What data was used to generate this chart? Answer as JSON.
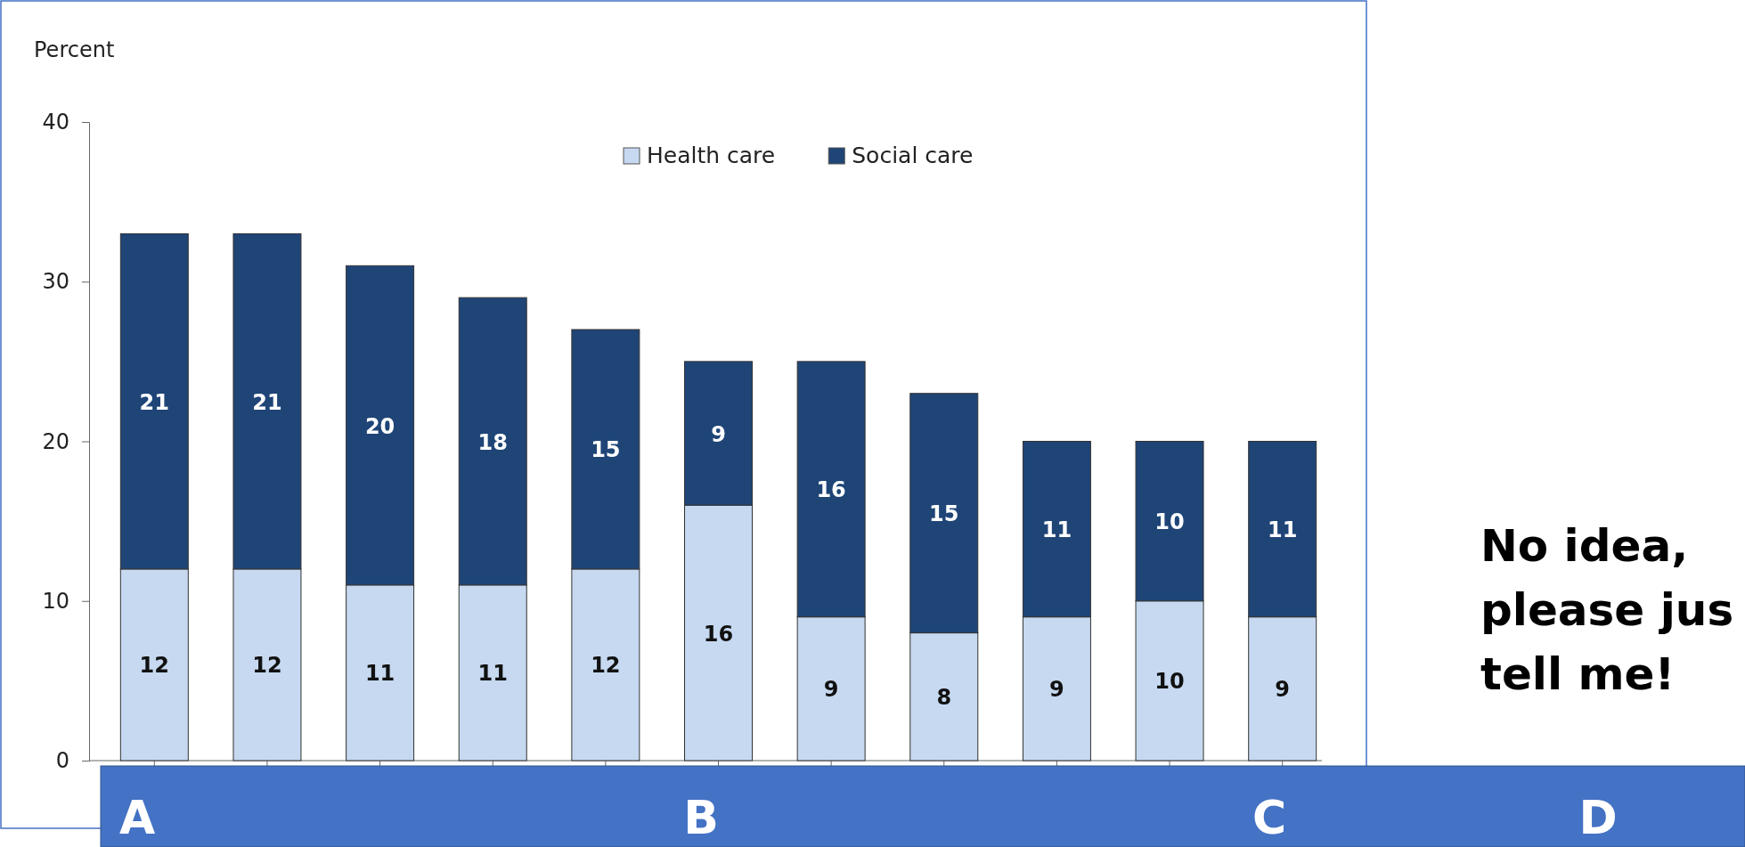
{
  "chart_data": {
    "type": "bar",
    "ylabel": "Percent",
    "stacked": true,
    "data_labels": true,
    "legend": "top",
    "grid": false,
    "categories": [
      null,
      null,
      null,
      null,
      null,
      null,
      null,
      null,
      null,
      null,
      null
    ],
    "ylim": [
      0,
      40
    ],
    "yticks": [
      0,
      10,
      20,
      30,
      40
    ],
    "series": [
      {
        "name": "Health care",
        "color": "#c6d9f0",
        "values": [
          12,
          12,
          11,
          11,
          12,
          16,
          9,
          8,
          9,
          10,
          9
        ]
      },
      {
        "name": "Social care",
        "color": "#1f4577",
        "values": [
          21,
          21,
          20,
          18,
          15,
          9,
          16,
          15,
          11,
          10,
          11
        ]
      }
    ],
    "annotations": [
      "A",
      "B",
      "C",
      "D",
      "No idea, please jus tell me!"
    ]
  }
}
